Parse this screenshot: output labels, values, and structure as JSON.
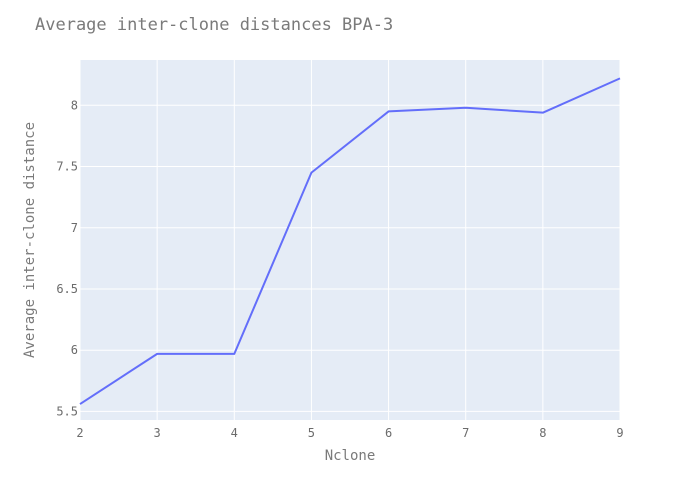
{
  "chart_data": {
    "type": "line",
    "title": "Average inter-clone distances BPA-3",
    "xlabel": "Nclone",
    "ylabel": "Average inter-clone distance",
    "xlim": [
      2,
      9
    ],
    "ylim": [
      5.43,
      8.37
    ],
    "x_ticks": [
      "2",
      "3",
      "4",
      "5",
      "6",
      "7",
      "8",
      "9"
    ],
    "y_ticks": [
      "5.5",
      "6",
      "6.5",
      "7",
      "7.5",
      "8"
    ],
    "x": [
      2,
      3,
      4,
      5,
      6,
      7,
      8,
      9
    ],
    "series": [
      {
        "values": [
          5.56,
          5.97,
          5.97,
          7.45,
          7.95,
          7.98,
          7.94,
          8.22
        ]
      }
    ],
    "grid": true,
    "colors": {
      "plot_bg": "#e5ecf6",
      "grid": "#ffffff",
      "line": "#636efa"
    }
  }
}
